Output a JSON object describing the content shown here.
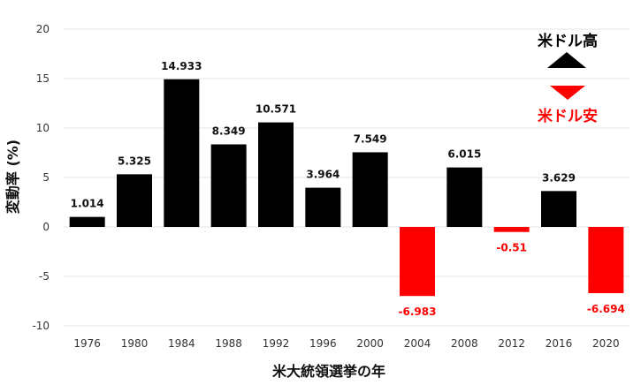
{
  "chart_data": {
    "type": "bar",
    "title": "",
    "xlabel": "米大統領選挙の年",
    "ylabel": "変動率 (%)",
    "ylim": [
      -10,
      20
    ],
    "yticks": [
      20,
      15,
      10,
      5,
      0,
      -5,
      -10
    ],
    "ytick_labels": [
      "20",
      "15",
      "10",
      "5",
      "0",
      "-5",
      "-10"
    ],
    "grid": true,
    "categories": [
      "1976",
      "1980",
      "1984",
      "1988",
      "1992",
      "1996",
      "2000",
      "2004",
      "2008",
      "2012",
      "2016",
      "2020"
    ],
    "values": [
      1.014,
      5.325,
      14.933,
      8.349,
      10.571,
      3.964,
      7.549,
      -6.983,
      6.015,
      -0.51,
      3.629,
      -6.694
    ],
    "value_labels": [
      "1.014",
      "5.325",
      "14.933",
      "8.349",
      "10.571",
      "3.964",
      "7.549",
      "-6.983",
      "6.015",
      "-0.51",
      "3.629",
      "-6.694"
    ],
    "positive_color": "#000000",
    "negative_color": "#ff0000",
    "legend": {
      "placement": "top-right",
      "up_label": "米ドル高",
      "down_label": "米ドル安",
      "up_color": "#000000",
      "down_color": "#ff0000"
    }
  }
}
